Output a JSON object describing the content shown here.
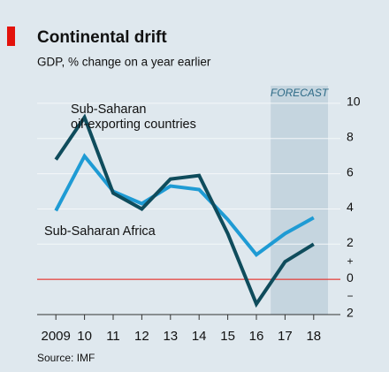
{
  "chart_data": {
    "type": "line",
    "title": "Continental drift",
    "subtitle": "GDP, % change on a year earlier",
    "source": "Source: IMF",
    "forecast": {
      "label": "FORECAST",
      "start": 2017,
      "end": 2018
    },
    "x": [
      2009,
      2010,
      2011,
      2012,
      2013,
      2014,
      2015,
      2016,
      2017,
      2018
    ],
    "xlim": [
      2008.5,
      2018.5
    ],
    "xticks": [
      2009,
      {
        "value": 2010,
        "label": "10"
      },
      {
        "value": 2011,
        "label": "11"
      },
      {
        "value": 2012,
        "label": "12"
      },
      {
        "value": 2013,
        "label": "13"
      },
      {
        "value": 2014,
        "label": "14"
      },
      {
        "value": 2015,
        "label": "15"
      },
      {
        "value": 2016,
        "label": "16"
      },
      {
        "value": 2017,
        "label": "17"
      },
      {
        "value": 2018,
        "label": "18"
      }
    ],
    "ylim": [
      -2,
      11
    ],
    "yticks": [
      {
        "value": -2,
        "label": "2"
      },
      0,
      2,
      4,
      6,
      8,
      10
    ],
    "axis_signs": [
      "+",
      "−"
    ],
    "zero_line_color": "#e3120b",
    "grid": true,
    "series": [
      {
        "name": [
          "Sub-Saharan",
          "oil-exporting countries"
        ],
        "color": "#0f4c5c",
        "values": [
          6.8,
          9.2,
          4.9,
          4.0,
          5.7,
          5.9,
          2.6,
          -1.4,
          1.0,
          2.0
        ]
      },
      {
        "name": [
          "Sub-Saharan Africa"
        ],
        "color": "#1f9bd4",
        "values": [
          3.9,
          7.0,
          5.0,
          4.3,
          5.3,
          5.1,
          3.4,
          1.4,
          2.6,
          3.5
        ]
      }
    ]
  }
}
